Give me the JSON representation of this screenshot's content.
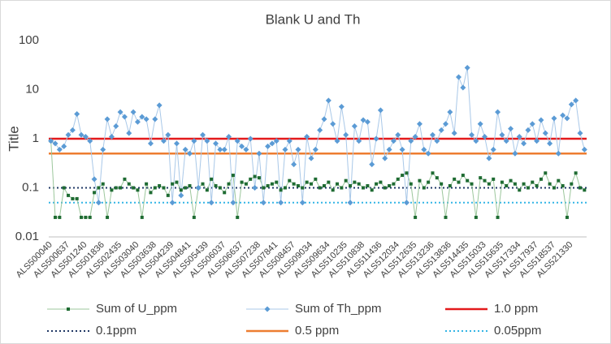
{
  "chart_data": {
    "type": "line",
    "title": "Blank U and Th",
    "y_label": "Title",
    "log_scale": true,
    "ylim": [
      0.01,
      100
    ],
    "yticks": [
      0.01,
      0.1,
      1,
      10,
      100
    ],
    "grid": false,
    "legend": "bottom",
    "categories": [
      "ALS500040",
      null,
      null,
      null,
      "ALS500637",
      null,
      null,
      null,
      "ALS501240",
      null,
      null,
      null,
      "ALS501836",
      null,
      null,
      null,
      "ALS502435",
      null,
      null,
      null,
      "ALS503040",
      null,
      null,
      null,
      "ALS503638",
      null,
      null,
      null,
      "ALS504239",
      null,
      null,
      null,
      "ALS504841",
      null,
      null,
      null,
      "ALS505439",
      null,
      null,
      null,
      "ALS506037",
      null,
      null,
      null,
      "ALS506637",
      null,
      null,
      null,
      "ALS507238",
      null,
      null,
      null,
      "ALS507841",
      null,
      null,
      null,
      "ALS508457",
      null,
      null,
      null,
      "ALS509034",
      null,
      null,
      null,
      "ALS509634",
      null,
      null,
      null,
      "ALS510235",
      null,
      null,
      null,
      "ALS510838",
      null,
      null,
      null,
      "ALS511436",
      null,
      null,
      null,
      "ALS512034",
      null,
      null,
      null,
      "ALS512635",
      null,
      null,
      null,
      "ALS513236",
      null,
      null,
      null,
      "ALS513836",
      null,
      null,
      null,
      "ALS514435",
      null,
      null,
      null,
      "ALS515033",
      null,
      null,
      null,
      "ALS515635",
      null,
      null,
      null,
      "ALS517334",
      null,
      null,
      null,
      "ALS517937",
      null,
      null,
      null,
      "ALS518537",
      null,
      null,
      null,
      "ALS521330",
      null,
      null,
      null
    ],
    "series": [
      {
        "name": "Sum of U_ppm",
        "color": "#1e6b32",
        "line_color": "#9cc79c",
        "marker": "square",
        "values": [
          0.9,
          0.025,
          0.025,
          0.1,
          0.07,
          0.06,
          0.06,
          0.025,
          0.025,
          0.025,
          0.08,
          0.1,
          0.12,
          0.025,
          0.09,
          0.1,
          0.1,
          0.15,
          0.12,
          0.1,
          0.09,
          0.025,
          0.12,
          0.08,
          0.1,
          0.11,
          0.1,
          0.07,
          0.12,
          0.13,
          0.09,
          0.1,
          0.11,
          0.025,
          0.1,
          0.12,
          0.09,
          0.15,
          0.11,
          0.1,
          0.08,
          0.12,
          0.18,
          0.025,
          0.13,
          0.12,
          0.15,
          0.17,
          0.16,
          0.1,
          0.11,
          0.12,
          0.13,
          0.09,
          0.1,
          0.14,
          0.12,
          0.11,
          0.1,
          0.13,
          0.12,
          0.15,
          0.1,
          0.11,
          0.13,
          0.09,
          0.12,
          0.1,
          0.14,
          0.11,
          0.13,
          0.12,
          0.1,
          0.11,
          0.09,
          0.12,
          0.13,
          0.1,
          0.11,
          0.12,
          0.15,
          0.18,
          0.2,
          0.12,
          0.025,
          0.14,
          0.1,
          0.13,
          0.2,
          0.16,
          0.12,
          0.025,
          0.11,
          0.15,
          0.13,
          0.18,
          0.14,
          0.12,
          0.025,
          0.16,
          0.14,
          0.12,
          0.15,
          0.025,
          0.13,
          0.11,
          0.14,
          0.12,
          0.09,
          0.12,
          0.1,
          0.13,
          0.11,
          0.15,
          0.2,
          0.12,
          0.1,
          0.14,
          0.11,
          0.025,
          0.12,
          0.2,
          0.1,
          0.09
        ]
      },
      {
        "name": "Sum of Th_ppm",
        "color": "#5b9bd5",
        "line_color": "#a9c8e8",
        "marker": "diamond",
        "values": [
          0.9,
          0.8,
          0.6,
          0.7,
          1.2,
          1.5,
          3.2,
          1.2,
          1.1,
          0.9,
          0.15,
          0.05,
          0.6,
          2.5,
          1.1,
          1.8,
          3.5,
          2.8,
          1.3,
          3.5,
          2.2,
          2.8,
          2.5,
          0.8,
          2.5,
          4.8,
          0.9,
          1.2,
          0.05,
          0.8,
          0.07,
          0.6,
          0.5,
          0.9,
          0.1,
          1.2,
          0.9,
          0.05,
          0.8,
          0.6,
          0.6,
          1.1,
          0.05,
          0.9,
          0.7,
          0.6,
          1.0,
          0.1,
          0.5,
          0.05,
          0.7,
          0.8,
          0.9,
          0.05,
          0.6,
          0.9,
          0.3,
          0.6,
          0.05,
          1.1,
          0.4,
          0.6,
          1.5,
          2.5,
          6.0,
          2.0,
          0.9,
          4.5,
          1.2,
          0.05,
          1.8,
          0.9,
          2.4,
          2.2,
          0.3,
          1.0,
          3.8,
          0.4,
          0.6,
          0.9,
          1.2,
          0.6,
          0.05,
          0.9,
          1.1,
          2.0,
          0.6,
          0.5,
          1.2,
          0.9,
          1.5,
          2.0,
          3.5,
          1.3,
          18,
          11,
          28,
          1.2,
          0.9,
          2.0,
          1.1,
          0.4,
          0.6,
          3.5,
          1.2,
          0.9,
          1.6,
          0.5,
          1.1,
          0.8,
          1.5,
          2.0,
          0.9,
          2.4,
          1.3,
          0.8,
          2.6,
          0.5,
          3.0,
          2.6,
          5.0,
          6.0,
          1.3,
          0.6
        ]
      }
    ],
    "reference_lines": [
      {
        "name": "1.0 ppm",
        "value": 1,
        "color": "#e31a1c",
        "dash": "solid",
        "width": 2.5
      },
      {
        "name": "0.1ppm",
        "value": 0.1,
        "color": "#1f3864",
        "dash": "dotted",
        "width": 2
      },
      {
        "name": "0.5 ppm",
        "value": 0.5,
        "color": "#ed7d31",
        "dash": "solid",
        "width": 2.5
      },
      {
        "name": "0.05ppm",
        "value": 0.05,
        "color": "#33b5e5",
        "dash": "dotted",
        "width": 2
      }
    ]
  }
}
